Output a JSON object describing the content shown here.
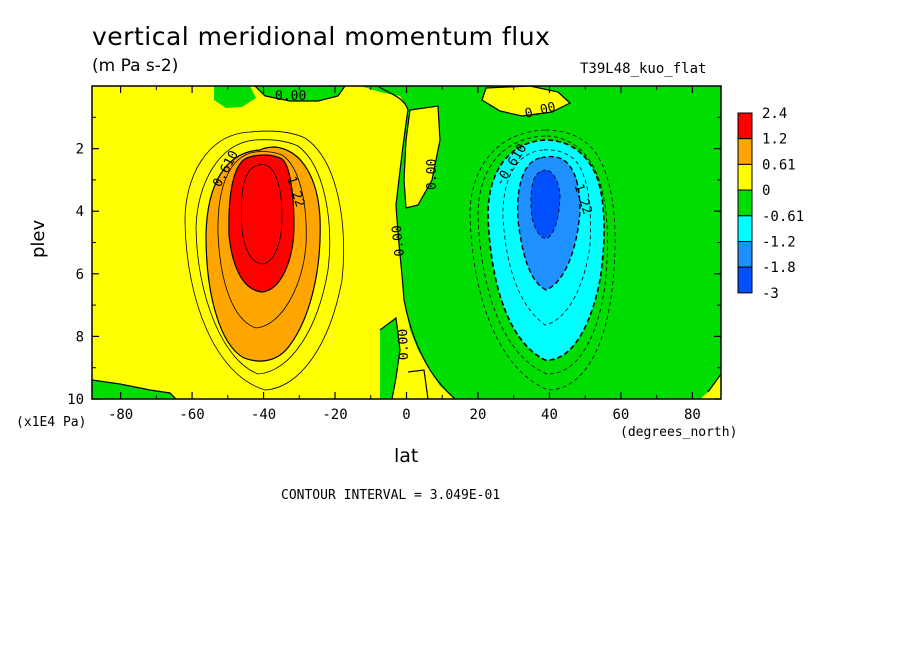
{
  "header": {
    "title": "vertical meridional momentum flux",
    "units": "(m Pa s-2)",
    "run_label": "T39L48_kuo_flat"
  },
  "axes": {
    "ylabel": "plev",
    "yunit": "(x1E4 Pa)",
    "xlabel": "lat",
    "xunit": "(degrees_north)"
  },
  "footer": {
    "contour_interval": "CONTOUR INTERVAL = 3.049E-01"
  },
  "colors": {
    "red": "#ff0000",
    "orange": "#ffa500",
    "yellow": "#ffff00",
    "green": "#00dd00",
    "cyan": "#00ffff",
    "lightblue": "#1e90ff",
    "blue": "#0050ff"
  },
  "chart_data": {
    "type": "contour",
    "title": "vertical meridional momentum flux",
    "subtitle": "(m Pa s-2)",
    "xlabel": "lat",
    "ylabel": "plev",
    "xlim": [
      -88,
      88
    ],
    "ylim": [
      0,
      10
    ],
    "y_inverted": true,
    "x_ticks": [
      -80,
      -60,
      -40,
      -20,
      0,
      20,
      40,
      60,
      80
    ],
    "y_ticks": [
      2,
      4,
      6,
      8,
      10
    ],
    "colorbar_labels": [
      "2.4",
      "1.2",
      "0.61",
      "0",
      "-0.61",
      "-1.2",
      "-1.8",
      "-3"
    ],
    "colorbar_colors": [
      "#ff0000",
      "#ffa500",
      "#ffff00",
      "#00dd00",
      "#00ffff",
      "#1e90ff",
      "#0050ff"
    ],
    "contour_labels": [
      "0.610",
      "1.22",
      "0.00",
      "0.00",
      "0.00",
      "0.00",
      "0.00",
      "-0.610",
      "-1.22"
    ],
    "features": [
      {
        "name": "positive maximum",
        "lat": -40,
        "plev": 4,
        "value_range": [
          1.8,
          2.4
        ]
      },
      {
        "name": "negative minimum",
        "lat": 38,
        "plev": 4,
        "value_range": [
          -3,
          -1.8
        ]
      }
    ]
  }
}
